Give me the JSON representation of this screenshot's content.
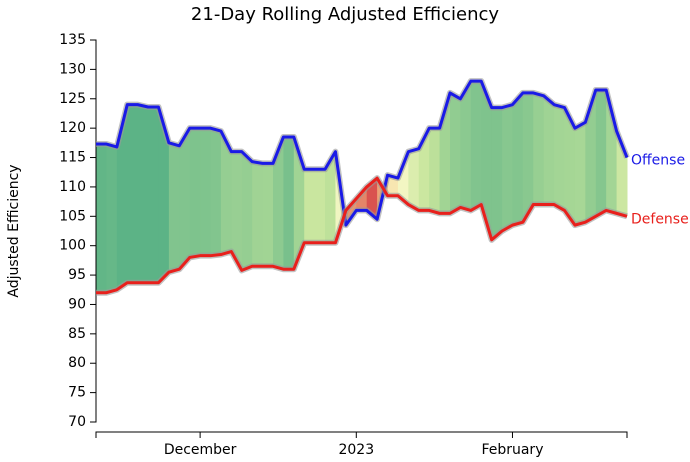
{
  "chart_data": {
    "type": "line",
    "title": "21-Day Rolling Adjusted Efficiency",
    "y_label": "Adjusted Efficiency",
    "categories": [
      null,
      null,
      null,
      null,
      null,
      null,
      null,
      null,
      null,
      null,
      "December",
      null,
      null,
      null,
      null,
      null,
      null,
      null,
      null,
      null,
      null,
      null,
      null,
      null,
      null,
      "2023",
      null,
      null,
      null,
      null,
      null,
      null,
      null,
      null,
      null,
      null,
      null,
      null,
      null,
      null,
      "February",
      null,
      null,
      null,
      null,
      null,
      null,
      null,
      null,
      null,
      null,
      null
    ],
    "series": [
      {
        "name": "Offense",
        "color": "#1a1ae6",
        "values": [
          117.3,
          117.3,
          116.8,
          124,
          124,
          123.6,
          123.6,
          117.5,
          117,
          120,
          120,
          120,
          119.5,
          116,
          116,
          114.3,
          114,
          114,
          118.5,
          118.5,
          113,
          113,
          113,
          116,
          103.5,
          106,
          106,
          104.5,
          112,
          111.5,
          116,
          116.5,
          120,
          120,
          126,
          125,
          128,
          128,
          123.5,
          123.5,
          124,
          126,
          126,
          125.5,
          124,
          123.5,
          120,
          121,
          126.5,
          126.5,
          119.5,
          115
        ]
      },
      {
        "name": "Defense",
        "color": "#e8201c",
        "values": [
          92,
          92,
          92.5,
          93.7,
          93.7,
          93.7,
          93.7,
          95.5,
          96,
          98,
          98.3,
          98.3,
          98.5,
          99,
          95.8,
          96.5,
          96.5,
          96.5,
          96,
          96,
          100.5,
          100.5,
          100.5,
          100.5,
          106,
          108,
          110,
          111.5,
          108.5,
          108.5,
          107,
          106,
          106,
          105.5,
          105.5,
          106.5,
          106,
          107,
          101,
          102.5,
          103.5,
          104,
          107,
          107,
          107,
          106,
          103.5,
          104,
          105,
          106,
          105.5,
          105
        ]
      }
    ],
    "band_colors": [
      "#d9534f",
      "#f6c98a",
      "#f8f8c8",
      "#c6e59c",
      "#5cb386"
    ],
    "ylim": [
      70,
      135
    ],
    "yticks": [
      70,
      75,
      80,
      85,
      90,
      95,
      100,
      105,
      110,
      115,
      120,
      125,
      130,
      135
    ]
  }
}
